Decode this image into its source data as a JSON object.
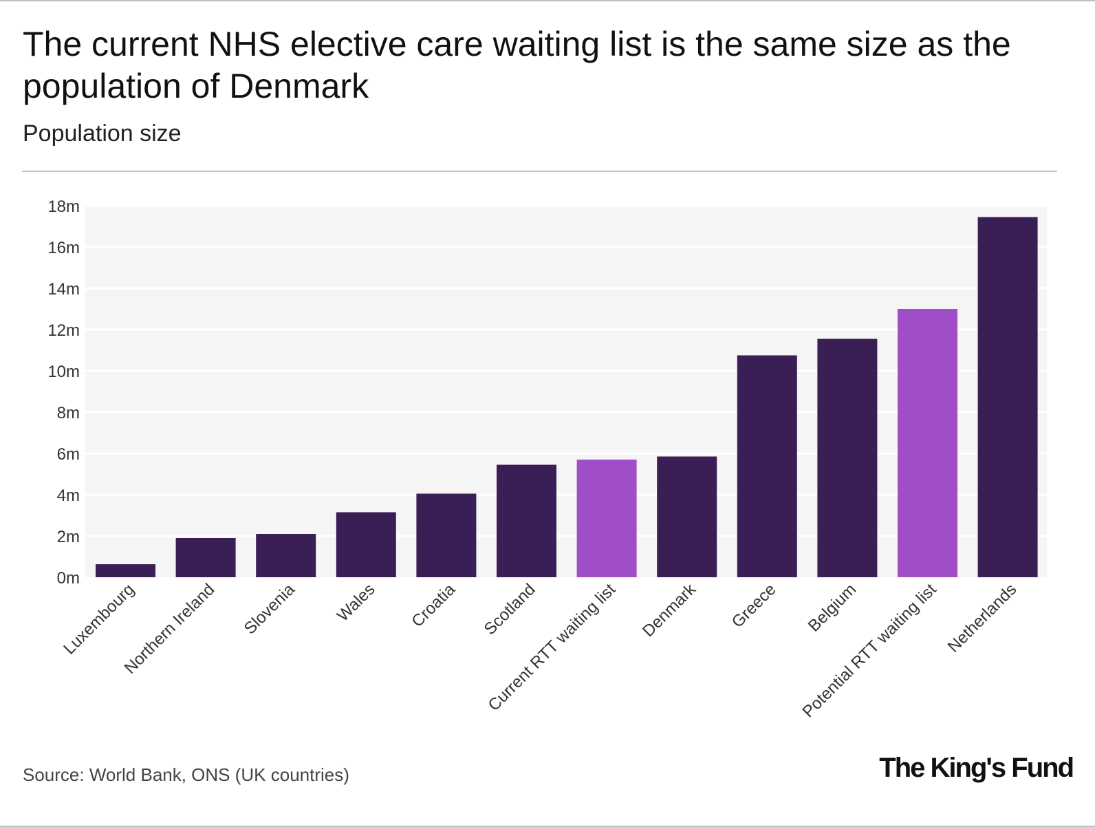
{
  "header": {
    "title": "The current NHS elective care waiting list is the same size as the population of Denmark",
    "subtitle": "Population size"
  },
  "footer": {
    "source": "Source: World Bank, ONS (UK countries)",
    "logo": "The King's Fund"
  },
  "colors": {
    "bar": "#3a1e56",
    "highlight": "#a04ec8",
    "plot_bg": "#f5f5f5",
    "grid": "#ffffff"
  },
  "chart_data": {
    "type": "bar",
    "title": "The current NHS elective care waiting list is the same size as the population of Denmark",
    "subtitle": "Population size",
    "xlabel": "",
    "ylabel": "",
    "ylim": [
      0,
      18
    ],
    "yunit": "m",
    "yticks": [
      0,
      2,
      4,
      6,
      8,
      10,
      12,
      14,
      16,
      18
    ],
    "ytick_labels": [
      "0m",
      "2m",
      "4m",
      "6m",
      "8m",
      "10m",
      "12m",
      "14m",
      "16m",
      "18m"
    ],
    "grid": true,
    "categories": [
      "Luxembourg",
      "Northern Ireland",
      "Slovenia",
      "Wales",
      "Croatia",
      "Scotland",
      "Current RTT waiting list",
      "Denmark",
      "Greece",
      "Belgium",
      "Potential RTT waiting list",
      "Netherlands"
    ],
    "values": [
      0.63,
      1.9,
      2.1,
      3.15,
      4.05,
      5.45,
      5.7,
      5.85,
      10.75,
      11.55,
      13.0,
      17.45
    ],
    "highlighted": [
      "Current RTT waiting list",
      "Potential RTT waiting list"
    ]
  }
}
